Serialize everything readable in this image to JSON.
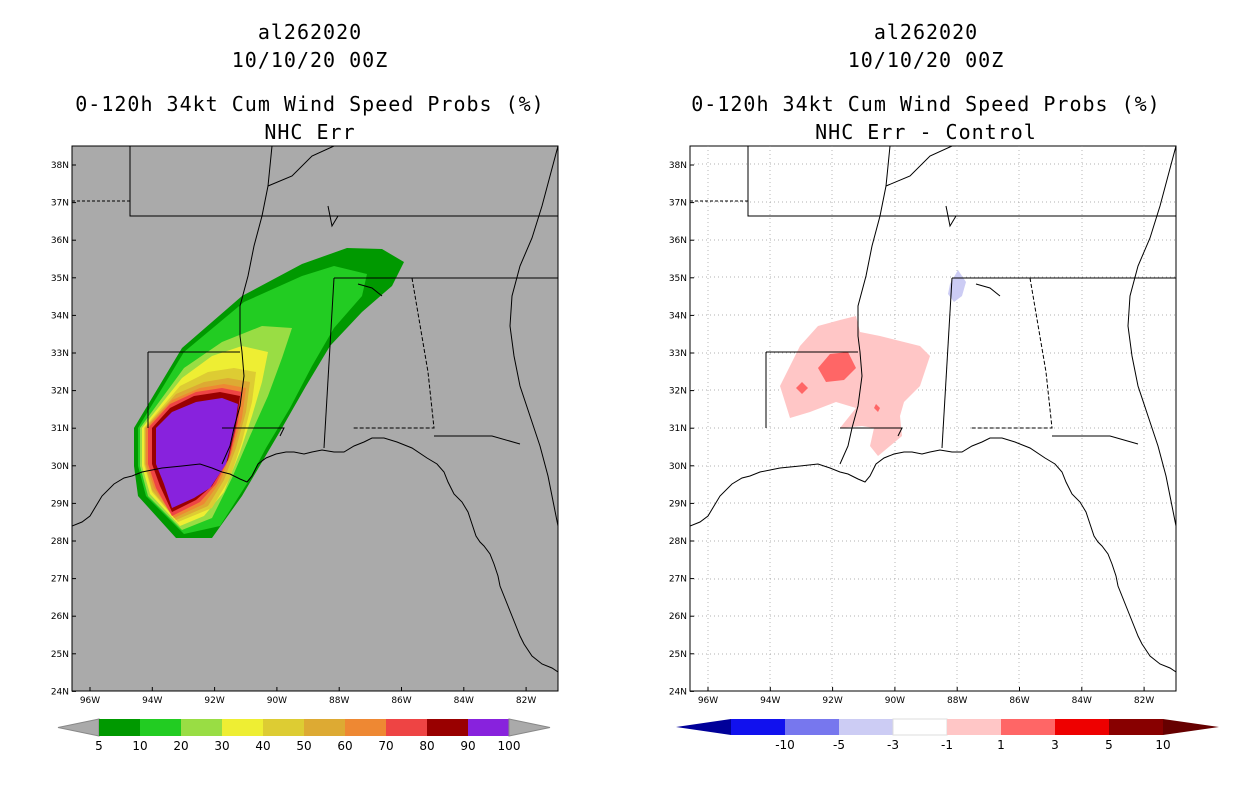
{
  "left_panel": {
    "storm_id": "al262020",
    "date": "10/10/20 00Z",
    "product": "0-120h 34kt Cum Wind Speed Probs (%)",
    "model": "NHC Err",
    "background_color": "#aaaaaa",
    "colorbar": {
      "labels": [
        "5",
        "10",
        "20",
        "30",
        "40",
        "50",
        "60",
        "70",
        "80",
        "90",
        "100"
      ],
      "colors": [
        "#009900",
        "#22cc22",
        "#99dd44",
        "#eeee33",
        "#ddcc33",
        "#ddaa33",
        "#ee8833",
        "#ee4444",
        "#990000",
        "#8822dd"
      ]
    }
  },
  "right_panel": {
    "storm_id": "al262020",
    "date": "10/10/20 00Z",
    "product": "0-120h 34kt Cum Wind Speed Probs (%)",
    "model": "NHC Err - Control",
    "background_color": "#ffffff",
    "colorbar": {
      "labels": [
        "-10",
        "-5",
        "-3",
        "-1",
        "1",
        "3",
        "5",
        "10"
      ],
      "colors": [
        "#000099",
        "#1111ee",
        "#7777ee",
        "#ccccf4",
        "#ffffff",
        "#ffc6c6",
        "#ff6666",
        "#ee0000",
        "#880000",
        "#660000"
      ]
    }
  },
  "map": {
    "lat_labels": [
      "38N",
      "37N",
      "36N",
      "35N",
      "34N",
      "33N",
      "32N",
      "31N",
      "30N",
      "29N",
      "28N",
      "27N",
      "26N",
      "25N",
      "24N"
    ],
    "lon_labels": [
      "96W",
      "94W",
      "92W",
      "90W",
      "88W",
      "86W",
      "84W",
      "82W"
    ]
  }
}
